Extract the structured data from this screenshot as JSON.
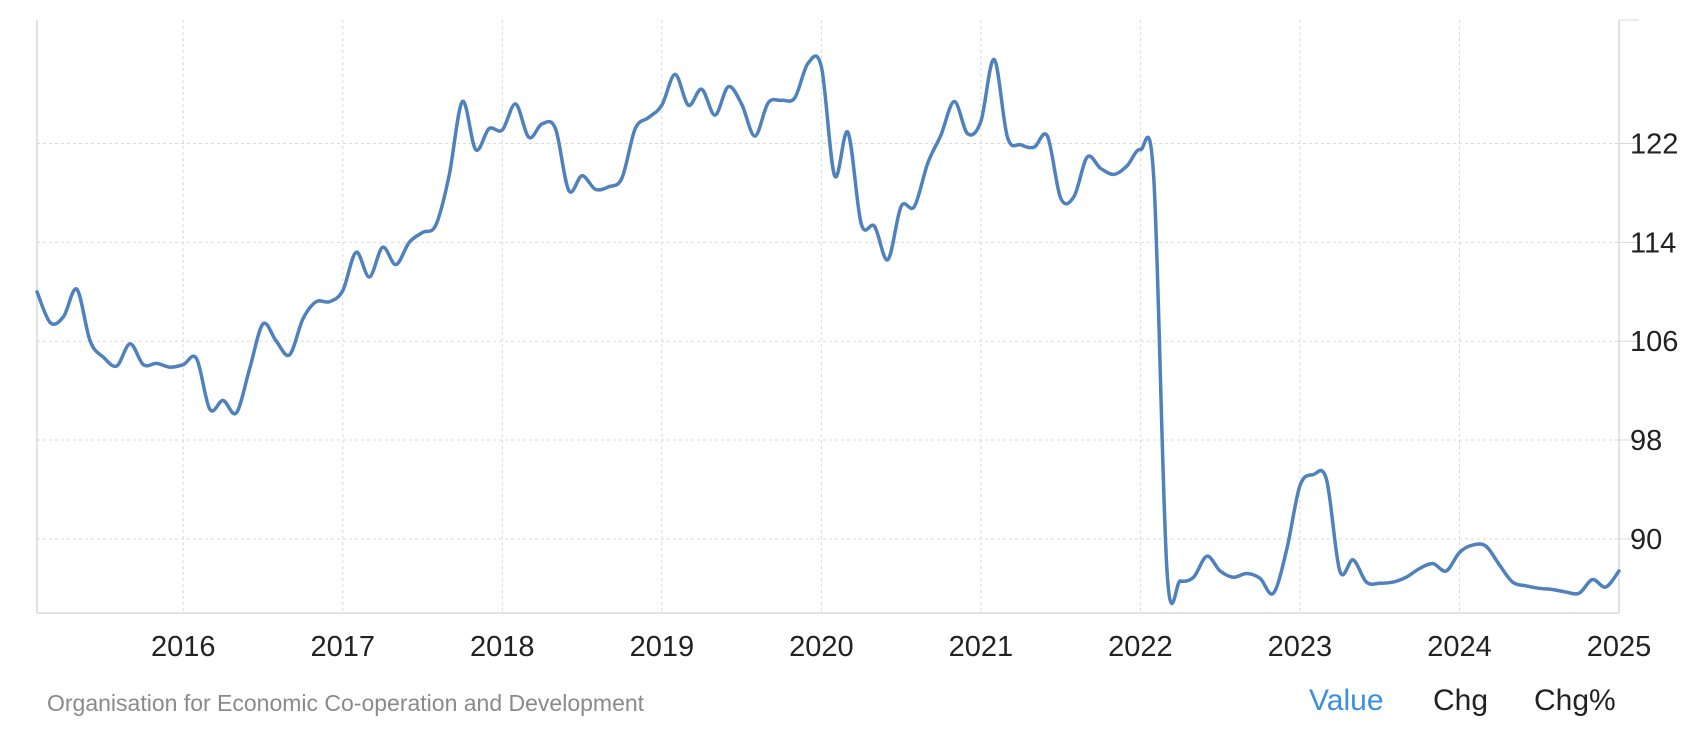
{
  "source": "Organisation for Economic Co-operation and Development",
  "tabs": [
    {
      "label": "Value",
      "active": true
    },
    {
      "label": "Chg",
      "active": false
    },
    {
      "label": "Chg%",
      "active": false
    }
  ],
  "colors": {
    "line": "#4f81bd",
    "grid": "#d9d9d9",
    "active_tab": "#3b8fde",
    "text": "#222222",
    "source_text": "#8a8a8a"
  },
  "chart_data": {
    "type": "line",
    "title": "",
    "xlabel": "",
    "ylabel": "",
    "xlim": [
      "2015-02",
      "2025-01"
    ],
    "ylim": [
      84,
      132
    ],
    "x_ticks": [
      "2016",
      "2017",
      "2018",
      "2019",
      "2020",
      "2021",
      "2022",
      "2023",
      "2024",
      "2025"
    ],
    "y_ticks": [
      90,
      98,
      106,
      114,
      122
    ],
    "grid": true,
    "y_axis_position": "right",
    "series": [
      {
        "x": [
          "2015-02",
          "2015-03",
          "2015-04",
          "2015-05",
          "2015-06",
          "2015-07",
          "2015-08",
          "2015-09",
          "2015-10",
          "2015-11",
          "2015-12",
          "2016-01",
          "2016-02",
          "2016-03",
          "2016-04",
          "2016-05",
          "2016-06",
          "2016-07",
          "2016-08",
          "2016-09",
          "2016-10",
          "2016-11",
          "2016-12",
          "2017-01",
          "2017-02",
          "2017-03",
          "2017-04",
          "2017-05",
          "2017-06",
          "2017-07",
          "2017-08",
          "2017-09",
          "2017-10",
          "2017-11",
          "2017-12",
          "2018-01",
          "2018-02",
          "2018-03",
          "2018-04",
          "2018-05",
          "2018-06",
          "2018-07",
          "2018-08",
          "2018-09",
          "2018-10",
          "2018-11",
          "2018-12",
          "2019-01",
          "2019-02",
          "2019-03",
          "2019-04",
          "2019-05",
          "2019-06",
          "2019-07",
          "2019-08",
          "2019-09",
          "2019-10",
          "2019-11",
          "2019-12",
          "2020-01",
          "2020-02",
          "2020-03",
          "2020-04",
          "2020-05",
          "2020-06",
          "2020-07",
          "2020-08",
          "2020-09",
          "2020-10",
          "2020-11",
          "2020-12",
          "2021-01",
          "2021-02",
          "2021-03",
          "2021-04",
          "2021-05",
          "2021-06",
          "2021-07",
          "2021-08",
          "2021-09",
          "2021-10",
          "2021-11",
          "2021-12",
          "2022-01",
          "2022-02",
          "2022-03",
          "2022-04",
          "2022-05",
          "2022-06",
          "2022-07",
          "2022-08",
          "2022-09",
          "2022-10",
          "2022-11",
          "2022-12",
          "2023-01",
          "2023-02",
          "2023-03",
          "2023-04",
          "2023-05",
          "2023-06",
          "2023-07",
          "2023-08",
          "2023-09",
          "2023-10",
          "2023-11",
          "2023-12",
          "2024-01",
          "2024-02",
          "2024-03",
          "2024-04",
          "2024-05",
          "2024-06",
          "2024-07",
          "2024-08",
          "2024-09",
          "2024-10",
          "2024-11",
          "2024-12",
          "2025-01"
        ],
        "values": [
          110,
          107.5,
          108,
          110.2,
          106,
          104.7,
          104,
          105.8,
          104.1,
          104.2,
          103.9,
          104.1,
          104.6,
          100.5,
          101.2,
          100.2,
          103.8,
          107.4,
          106,
          104.9,
          107.8,
          109.2,
          109.2,
          110.1,
          113.2,
          111.2,
          113.6,
          112.2,
          114,
          114.8,
          115.4,
          119.4,
          125.4,
          121.5,
          123.2,
          123.1,
          125.2,
          122.5,
          123.6,
          123.2,
          118.2,
          119.4,
          118.3,
          118.5,
          119.2,
          123.2,
          124.1,
          125.1,
          127.6,
          125.1,
          126.4,
          124.3,
          126.6,
          125.2,
          122.6,
          125.3,
          125.5,
          125.7,
          128.5,
          128.2,
          119.4,
          122.9,
          115.5,
          115.3,
          112.6,
          116.9,
          116.9,
          120.4,
          122.7,
          125.4,
          122.8,
          123.8,
          128.8,
          122.5,
          121.9,
          121.7,
          122.6,
          117.6,
          117.7,
          120.9,
          120,
          119.5,
          120.2,
          121.5,
          119.3,
          87.4,
          86.6,
          86.9,
          88.6,
          87.4,
          86.9,
          87.2,
          86.8,
          85.6,
          89.1,
          94.3,
          95.2,
          94.8,
          87.4,
          88.3,
          86.5,
          86.4,
          86.5,
          86.9,
          87.6,
          88,
          87.4,
          88.9,
          89.5,
          89.4,
          87.9,
          86.5,
          86.2,
          86,
          85.9,
          85.7,
          85.6,
          86.7,
          86.1,
          87.4
        ]
      }
    ]
  }
}
